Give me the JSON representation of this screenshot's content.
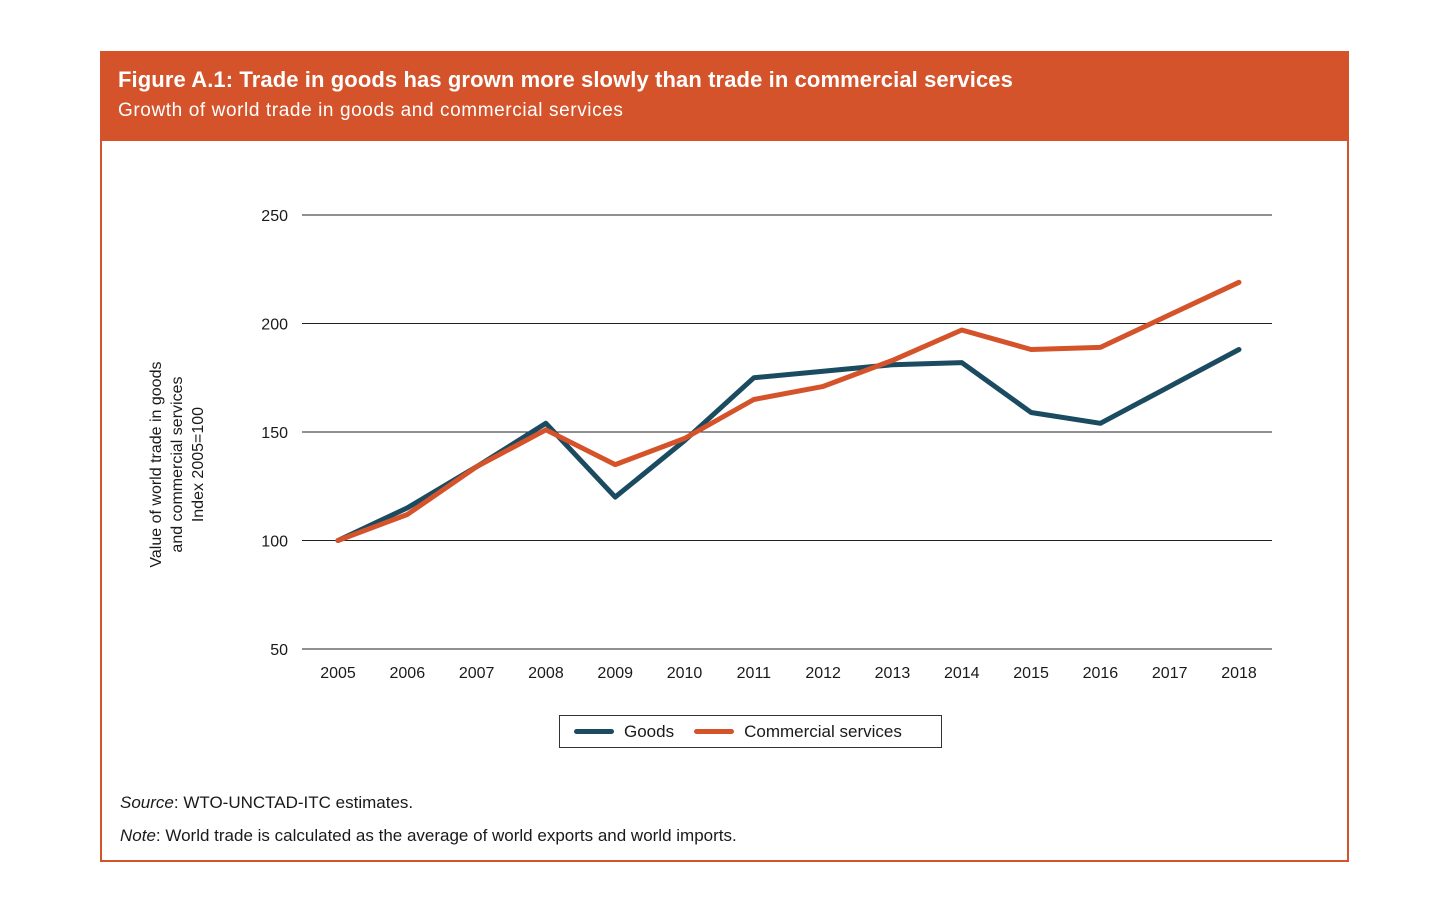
{
  "header": {
    "title": "Figure A.1: Trade in goods has grown more slowly than trade in commercial services",
    "subtitle": "Growth of world trade in goods and commercial services"
  },
  "colors": {
    "accent": "#d5532a",
    "goods": "#1b4b60",
    "services": "#d5532a"
  },
  "chart_data": {
    "type": "line",
    "title": "Growth of world trade in goods and commercial services",
    "xlabel": "",
    "ylabel_lines": [
      "Value of world trade in goods",
      "and commercial services",
      "Index 2005=100"
    ],
    "x": [
      "2005",
      "2006",
      "2007",
      "2008",
      "2009",
      "2010",
      "2011",
      "2012",
      "2013",
      "2014",
      "2015",
      "2016",
      "2017",
      "2018"
    ],
    "ylim": [
      50,
      250
    ],
    "yticks": [
      50,
      100,
      150,
      200,
      250
    ],
    "grid": true,
    "legend_position": "bottom-center",
    "series": [
      {
        "name": "Goods",
        "color": "#1b4b60",
        "values": [
          100,
          115,
          134,
          154,
          120,
          146,
          175,
          178,
          181,
          182,
          159,
          154,
          171,
          188
        ]
      },
      {
        "name": "Commercial services",
        "color": "#d5532a",
        "values": [
          100,
          112,
          134,
          151,
          135,
          147,
          165,
          171,
          183,
          197,
          188,
          189,
          204,
          219
        ]
      }
    ]
  },
  "footer": {
    "source_label": "Source",
    "source_text": ": WTO-UNCTAD-ITC estimates.",
    "note_label": "Note",
    "note_text": ": World trade is calculated as the average of world exports and world imports."
  }
}
